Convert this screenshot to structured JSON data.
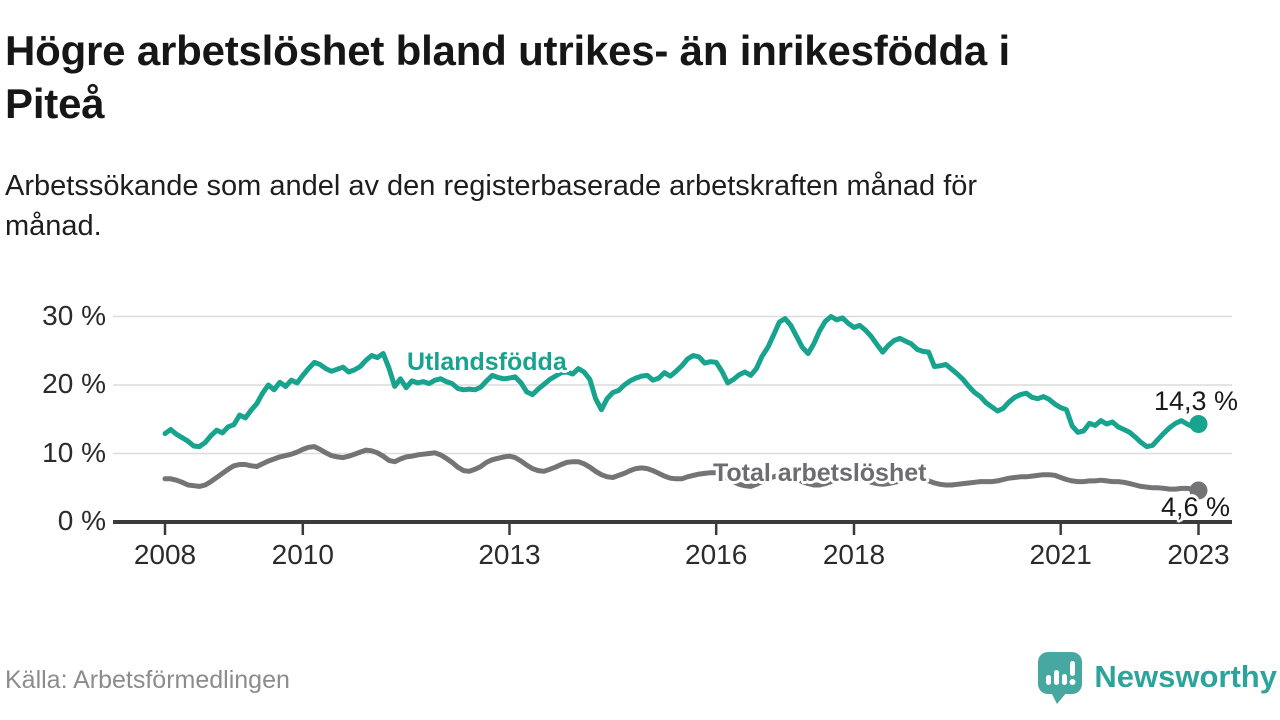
{
  "header": {
    "title": "Högre arbetslöshet bland utrikes- än inrikesfödda i\nPiteå",
    "subtitle": "Arbetssökande som andel av den registerbaserade arbetskraften månad för\nmånad."
  },
  "footer": {
    "source": "Källa: Arbetsförmedlingen",
    "brand": "Newsworthy",
    "brand_icon": "newsworthy-speech-bubble-bar-chart-icon"
  },
  "colors": {
    "series_foreign_born": "#17a38e",
    "series_total": "#747477",
    "gridline": "#dcdcdc",
    "axis": "#3b3b3d",
    "tick_text": "#2b2b2b",
    "value_text": "#1a1a1a",
    "brand_teal": "#2ca49b",
    "logo_teal": "#47a8a1"
  },
  "chart_data": {
    "type": "line",
    "title": "Högre arbetslöshet bland utrikes- än inrikesfödda i Piteå",
    "subtitle": "Arbetssökande som andel av den registerbaserade arbetskraften månad för månad.",
    "unit": "%",
    "frequency": "monthly",
    "grid": "horizontal",
    "legend_position": "inline-labels",
    "x_domain": [
      2007.25,
      2023.5
    ],
    "y_domain": [
      0,
      30
    ],
    "x_ticks": [
      {
        "value": 2008,
        "label": "2008"
      },
      {
        "value": 2010,
        "label": "2010"
      },
      {
        "value": 2013,
        "label": "2013"
      },
      {
        "value": 2016,
        "label": "2016"
      },
      {
        "value": 2018,
        "label": "2018"
      },
      {
        "value": 2021,
        "label": "2021"
      },
      {
        "value": 2023,
        "label": "2023"
      }
    ],
    "y_ticks": [
      {
        "value": 30,
        "label": "30 %"
      },
      {
        "value": 20,
        "label": "20 %"
      },
      {
        "value": 10,
        "label": "10 %"
      },
      {
        "value": 0,
        "label": "0 %"
      }
    ],
    "series": [
      {
        "name": "Utlandsfödda",
        "label": "Utlandsfödda",
        "color": "#17a38e",
        "end_label": "14,3 %",
        "end_value": 14.3,
        "start_year": 2008,
        "step_months": 1,
        "values": [
          12.9,
          13.5,
          12.8,
          12.3,
          11.8,
          11.1,
          11.0,
          11.6,
          12.6,
          13.4,
          13.0,
          13.9,
          14.2,
          15.6,
          15.2,
          16.3,
          17.3,
          18.8,
          20.0,
          19.3,
          20.4,
          19.8,
          20.7,
          20.3,
          21.4,
          22.4,
          23.3,
          23.0,
          22.4,
          22.0,
          22.3,
          22.6,
          21.9,
          22.2,
          22.7,
          23.6,
          24.3,
          24.0,
          24.6,
          22.5,
          19.8,
          20.9,
          19.6,
          20.6,
          20.3,
          20.5,
          20.2,
          20.7,
          20.9,
          20.5,
          20.2,
          19.5,
          19.3,
          19.4,
          19.3,
          19.7,
          20.6,
          21.4,
          21.1,
          20.9,
          21.0,
          21.2,
          20.3,
          19.0,
          18.6,
          19.4,
          20.1,
          20.8,
          21.3,
          21.8,
          21.9,
          21.6,
          22.4,
          21.9,
          20.8,
          18.0,
          16.4,
          18.0,
          18.9,
          19.2,
          20.0,
          20.6,
          21.0,
          21.3,
          21.4,
          20.7,
          21.0,
          21.8,
          21.3,
          22.0,
          22.8,
          23.8,
          24.3,
          24.1,
          23.2,
          23.4,
          23.3,
          22.0,
          20.3,
          20.8,
          21.5,
          21.9,
          21.4,
          22.4,
          24.2,
          25.5,
          27.3,
          29.2,
          29.7,
          28.7,
          27.1,
          25.5,
          24.6,
          26.0,
          27.9,
          29.3,
          30.0,
          29.5,
          29.8,
          29.0,
          28.4,
          28.7,
          28.0,
          27.1,
          25.9,
          24.8,
          25.8,
          26.5,
          26.8,
          26.4,
          26.0,
          25.2,
          24.9,
          24.8,
          22.7,
          22.8,
          23.0,
          22.3,
          21.6,
          20.8,
          19.8,
          18.9,
          18.3,
          17.4,
          16.8,
          16.2,
          16.6,
          17.5,
          18.2,
          18.6,
          18.8,
          18.2,
          18.0,
          18.3,
          17.9,
          17.2,
          16.7,
          16.4,
          14.0,
          13.1,
          13.3,
          14.4,
          14.1,
          14.8,
          14.3,
          14.6,
          13.9,
          13.5,
          13.1,
          12.4,
          11.6,
          11.0,
          11.2,
          12.1,
          13.0,
          13.8,
          14.4,
          14.8,
          14.3,
          13.9,
          14.3
        ]
      },
      {
        "name": "Total arbetslöshet",
        "label": "Total arbetslöshet",
        "color": "#747477",
        "label_color": "#6d6d70",
        "end_label": "4,6 %",
        "end_value": 4.6,
        "start_year": 2008,
        "step_months": 1,
        "values": [
          6.3,
          6.3,
          6.1,
          5.8,
          5.4,
          5.3,
          5.2,
          5.4,
          5.9,
          6.5,
          7.1,
          7.7,
          8.2,
          8.4,
          8.4,
          8.2,
          8.1,
          8.5,
          8.9,
          9.2,
          9.5,
          9.7,
          9.9,
          10.2,
          10.6,
          10.9,
          11.0,
          10.6,
          10.1,
          9.7,
          9.5,
          9.4,
          9.6,
          9.9,
          10.2,
          10.5,
          10.4,
          10.1,
          9.6,
          9.0,
          8.8,
          9.2,
          9.5,
          9.6,
          9.8,
          9.9,
          10.0,
          10.1,
          9.8,
          9.3,
          8.7,
          8.0,
          7.5,
          7.4,
          7.7,
          8.1,
          8.7,
          9.1,
          9.3,
          9.5,
          9.6,
          9.4,
          8.9,
          8.3,
          7.8,
          7.5,
          7.4,
          7.7,
          8.0,
          8.4,
          8.7,
          8.8,
          8.8,
          8.5,
          8.0,
          7.4,
          6.9,
          6.6,
          6.5,
          6.8,
          7.1,
          7.5,
          7.8,
          7.9,
          7.8,
          7.5,
          7.1,
          6.7,
          6.4,
          6.3,
          6.3,
          6.6,
          6.8,
          7.0,
          7.1,
          7.2,
          7.2,
          6.9,
          6.4,
          5.9,
          5.5,
          5.3,
          5.2,
          5.5,
          5.9,
          6.3,
          6.6,
          6.8,
          6.9,
          6.7,
          6.3,
          5.9,
          5.6,
          5.4,
          5.4,
          5.6,
          5.9,
          6.2,
          6.5,
          6.6,
          6.6,
          6.4,
          6.1,
          5.8,
          5.6,
          5.5,
          5.6,
          5.8,
          6.0,
          6.2,
          6.3,
          6.3,
          6.2,
          6.0,
          5.7,
          5.5,
          5.4,
          5.4,
          5.5,
          5.6,
          5.7,
          5.8,
          5.9,
          5.9,
          5.9,
          6.0,
          6.2,
          6.4,
          6.5,
          6.6,
          6.6,
          6.7,
          6.8,
          6.9,
          6.9,
          6.8,
          6.5,
          6.2,
          6.0,
          5.9,
          5.9,
          6.0,
          6.0,
          6.1,
          6.0,
          5.9,
          5.9,
          5.8,
          5.6,
          5.4,
          5.2,
          5.1,
          5.0,
          5.0,
          4.9,
          4.8,
          4.8,
          4.9,
          4.9,
          4.8,
          4.6
        ]
      }
    ]
  }
}
